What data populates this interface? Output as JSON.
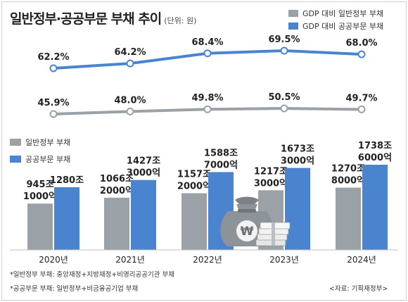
{
  "title": "일반정부·공공부문 부채 추이",
  "unit": "(단위: 원)",
  "legend_top": [
    {
      "label": "GDP 대비 일반정부 부채",
      "color": "#9aa1a7"
    },
    {
      "label": "GDP 대비 공공부문 부채",
      "color": "#4a84cf"
    }
  ],
  "legend_bars": [
    {
      "label": "일반정부 부채",
      "color": "#9aa1a7"
    },
    {
      "label": "공공부문 부채",
      "color": "#4a84cf"
    }
  ],
  "chart_data": {
    "type": "bar",
    "categories": [
      "2020년",
      "2021년",
      "2022년",
      "2023년",
      "2024년"
    ],
    "series": [
      {
        "name": "일반정부 부채",
        "values": [
          9451000,
          10662000,
          11572000,
          12173000,
          12708000
        ],
        "labels": [
          [
            "945조",
            "1000억"
          ],
          [
            "1066조",
            "2000억"
          ],
          [
            "1157조",
            "2000억"
          ],
          [
            "1217조",
            "3000억"
          ],
          [
            "1270조",
            "8000억"
          ]
        ],
        "color": "#9aa1a7"
      },
      {
        "name": "공공부문 부채",
        "values": [
          12800000,
          14273000,
          15887000,
          16733000,
          17386000
        ],
        "labels": [
          [
            "1280조"
          ],
          [
            "1427조",
            "3000억"
          ],
          [
            "1588조",
            "7000억"
          ],
          [
            "1673조",
            "3000억"
          ],
          [
            "1738조",
            "6000억"
          ]
        ],
        "color": "#4a84cf"
      }
    ],
    "lines": [
      {
        "name": "GDP 대비 공공부문 부채",
        "values": [
          62.2,
          64.2,
          68.4,
          69.5,
          68.0
        ],
        "labels": [
          "62.2%",
          "64.2%",
          "68.4%",
          "69.5%",
          "68.0%"
        ],
        "color": "#4a84cf"
      },
      {
        "name": "GDP 대비 일반정부 부채",
        "values": [
          45.9,
          48.0,
          49.8,
          50.5,
          49.7
        ],
        "labels": [
          "45.9%",
          "48.0%",
          "49.8%",
          "50.5%",
          "49.7%"
        ],
        "color": "#9aa1a7"
      }
    ]
  },
  "footnotes": [
    "*일반정부 부채: 중앙재정+지방재정+비영리공공기관 부채",
    "*공공부문 부채: 일반정부+비금융공기업 부채"
  ],
  "source": "<자료: 기획재정부>",
  "icon": "money-bag-icon",
  "icon_symbol": "₩"
}
